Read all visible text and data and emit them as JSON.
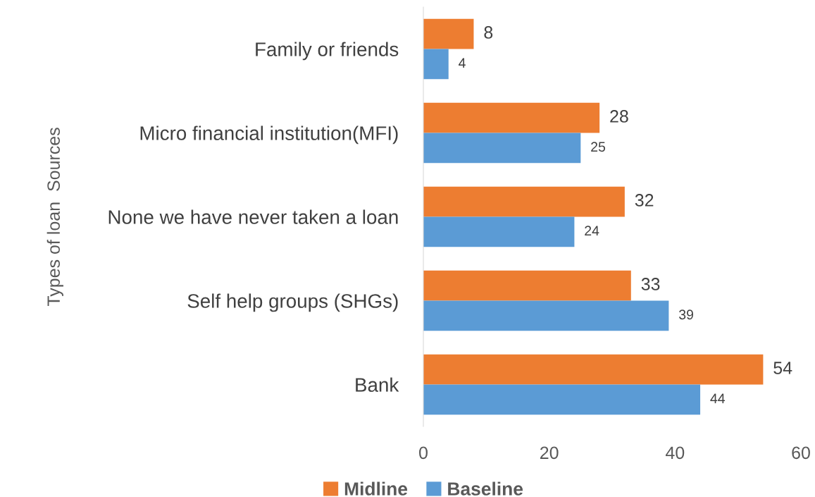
{
  "chart_data": {
    "type": "bar",
    "orientation": "horizontal",
    "ylabel": "Types of loan  Sources",
    "categories": [
      "Family or friends",
      "Micro financial institution(MFI)",
      "None we have never taken a loan",
      "Self help groups (SHGs)",
      "Bank"
    ],
    "series": [
      {
        "name": "Midline",
        "color": "#ed7d31",
        "values": [
          8,
          28,
          32,
          33,
          54
        ]
      },
      {
        "name": "Baseline",
        "color": "#5b9bd5",
        "values": [
          4,
          25,
          24,
          39,
          44
        ]
      }
    ],
    "xlim": [
      0,
      60
    ],
    "xticks": [
      0,
      20,
      40,
      60
    ],
    "grid": false,
    "legend": "bottom",
    "data_labels": true
  }
}
